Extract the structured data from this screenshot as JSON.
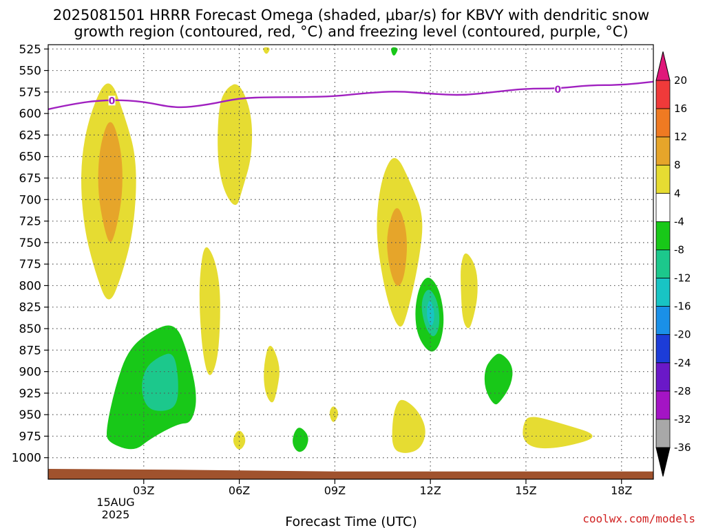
{
  "chart_data": {
    "type": "heatmap",
    "title": {
      "line1": "2025081501 HRRR Forecast Omega (shaded, μbar/s) for KBVY with dendritic snow",
      "line2": "growth region (contoured, red, °C) and freezing level (contoured, purple, °C)"
    },
    "xlabel": "Forecast Time (UTC)",
    "ylabel": "",
    "x_ticks": [
      "03Z",
      "06Z",
      "09Z",
      "12Z",
      "15Z",
      "18Z"
    ],
    "x_tick_sublabels": [
      "15AUG",
      "2025"
    ],
    "x_range_hours_utc": [
      0,
      19
    ],
    "y_ticks_hpa": [
      525,
      550,
      575,
      600,
      625,
      650,
      675,
      700,
      725,
      750,
      775,
      800,
      825,
      850,
      875,
      900,
      925,
      950,
      975,
      1000
    ],
    "y_range_hpa": [
      520,
      1025
    ],
    "grid": true,
    "colorbar": {
      "labels": [
        "20",
        "16",
        "12",
        "8",
        "4",
        "-4",
        "-8",
        "-12",
        "-16",
        "-20",
        "-24",
        "-28",
        "-32",
        "-36"
      ],
      "colors": {
        "above_20": "#e0187a",
        "16_20": "#f03a3a",
        "12_16": "#ef7a22",
        "8_12": "#e6a52a",
        "4_8": "#e6dc32",
        "m4_4": "#ffffff",
        "m8_m4": "#18c818",
        "m12_m8": "#1cc88c",
        "m16_m12": "#18c4c4",
        "m20_m16": "#1a90e8",
        "m24_m20": "#1c3cd8",
        "m28_m24": "#6a18c8",
        "m32_m28": "#a414c4",
        "m36_m32": "#a8a8a8",
        "below_m36": "#000000"
      }
    },
    "freezing_level": {
      "label": "0",
      "color": "#a020c0",
      "points": [
        {
          "x": 0,
          "y": 595
        },
        {
          "x": 1,
          "y": 587
        },
        {
          "x": 2,
          "y": 584
        },
        {
          "x": 3,
          "y": 586
        },
        {
          "x": 4,
          "y": 594
        },
        {
          "x": 5,
          "y": 590
        },
        {
          "x": 6,
          "y": 582
        },
        {
          "x": 7,
          "y": 581
        },
        {
          "x": 8,
          "y": 581
        },
        {
          "x": 9,
          "y": 580
        },
        {
          "x": 10,
          "y": 576
        },
        {
          "x": 11,
          "y": 574
        },
        {
          "x": 12,
          "y": 577
        },
        {
          "x": 13,
          "y": 579
        },
        {
          "x": 14,
          "y": 575
        },
        {
          "x": 15,
          "y": 571
        },
        {
          "x": 16,
          "y": 571
        },
        {
          "x": 17,
          "y": 567
        },
        {
          "x": 18,
          "y": 567
        },
        {
          "x": 19,
          "y": 563
        }
      ],
      "label_points": [
        {
          "x": 2,
          "y": 585
        },
        {
          "x": 16,
          "y": 572
        }
      ]
    },
    "terrain_color": "#a0522d",
    "terrain_top_hpa": [
      {
        "x": 0,
        "y": 1013
      },
      {
        "x": 4,
        "y": 1014
      },
      {
        "x": 9,
        "y": 1016
      },
      {
        "x": 12,
        "y": 1016
      },
      {
        "x": 19,
        "y": 1016
      }
    ],
    "omega_regions": [
      {
        "range": "4_8",
        "points": [
          [
            1.9,
            553
          ],
          [
            2.4,
            602
          ],
          [
            2.8,
            655
          ],
          [
            2.7,
            733
          ],
          [
            2.3,
            790
          ],
          [
            1.9,
            825
          ],
          [
            1.5,
            788
          ],
          [
            1.1,
            730
          ],
          [
            1.0,
            660
          ],
          [
            1.3,
            600
          ]
        ]
      },
      {
        "range": "8_12",
        "points": [
          [
            1.95,
            600
          ],
          [
            2.3,
            640
          ],
          [
            2.35,
            690
          ],
          [
            2.15,
            733
          ],
          [
            1.95,
            755
          ],
          [
            1.75,
            733
          ],
          [
            1.55,
            690
          ],
          [
            1.6,
            640
          ]
        ]
      },
      {
        "range": "4_8",
        "points": [
          [
            6.0,
            563
          ],
          [
            6.4,
            600
          ],
          [
            6.4,
            650
          ],
          [
            6.1,
            688
          ],
          [
            5.9,
            712
          ],
          [
            5.5,
            690
          ],
          [
            5.3,
            650
          ],
          [
            5.35,
            590
          ],
          [
            5.6,
            570
          ]
        ]
      },
      {
        "range": "4_8",
        "points": [
          [
            6.7,
            523
          ],
          [
            7.0,
            523
          ],
          [
            6.85,
            533
          ]
        ]
      },
      {
        "range": "4_8",
        "points": [
          [
            4.9,
            750
          ],
          [
            5.2,
            765
          ],
          [
            5.4,
            800
          ],
          [
            5.4,
            850
          ],
          [
            5.3,
            890
          ],
          [
            5.05,
            910
          ],
          [
            4.85,
            880
          ],
          [
            4.75,
            830
          ],
          [
            4.75,
            790
          ]
        ]
      },
      {
        "range": "4_8",
        "points": [
          [
            6.95,
            862
          ],
          [
            7.3,
            893
          ],
          [
            7.2,
            920
          ],
          [
            7.05,
            940
          ],
          [
            6.8,
            925
          ],
          [
            6.75,
            895
          ]
        ]
      },
      {
        "range": "4_8",
        "points": [
          [
            6.0,
            965
          ],
          [
            6.25,
            980
          ],
          [
            6.0,
            994
          ],
          [
            5.75,
            980
          ]
        ]
      },
      {
        "range": "4_8",
        "points": [
          [
            8.95,
            938
          ],
          [
            9.15,
            948
          ],
          [
            8.95,
            962
          ],
          [
            8.8,
            948
          ]
        ]
      },
      {
        "range": "4_8",
        "points": [
          [
            10.9,
            644
          ],
          [
            11.4,
            682
          ],
          [
            11.8,
            720
          ],
          [
            11.65,
            770
          ],
          [
            11.3,
            830
          ],
          [
            11.05,
            855
          ],
          [
            10.65,
            820
          ],
          [
            10.35,
            760
          ],
          [
            10.3,
            718
          ],
          [
            10.5,
            670
          ]
        ]
      },
      {
        "range": "8_12",
        "points": [
          [
            10.95,
            700
          ],
          [
            11.3,
            740
          ],
          [
            11.2,
            790
          ],
          [
            10.95,
            805
          ],
          [
            10.7,
            780
          ],
          [
            10.6,
            740
          ]
        ]
      },
      {
        "range": "m8_m4",
        "points": [
          [
            10.8,
            523
          ],
          [
            10.9,
            523
          ],
          [
            11.0,
            525
          ],
          [
            10.85,
            535
          ],
          [
            10.75,
            526
          ]
        ]
      },
      {
        "range": "m8_m4",
        "points": [
          [
            11.95,
            787
          ],
          [
            12.3,
            805
          ],
          [
            12.45,
            840
          ],
          [
            12.3,
            870
          ],
          [
            12.0,
            880
          ],
          [
            11.6,
            860
          ],
          [
            11.5,
            830
          ],
          [
            11.65,
            800
          ]
        ]
      },
      {
        "range": "m12_m8",
        "points": [
          [
            12.0,
            803
          ],
          [
            12.25,
            820
          ],
          [
            12.3,
            848
          ],
          [
            12.1,
            862
          ],
          [
            11.85,
            850
          ],
          [
            11.7,
            825
          ],
          [
            11.8,
            808
          ]
        ]
      },
      {
        "range": "m16_m12",
        "points": [
          [
            12.0,
            815
          ],
          [
            12.15,
            833
          ],
          [
            12.05,
            850
          ],
          [
            11.88,
            838
          ],
          [
            11.9,
            822
          ]
        ]
      },
      {
        "range": "4_8",
        "points": [
          [
            13.1,
            758
          ],
          [
            13.45,
            778
          ],
          [
            13.5,
            810
          ],
          [
            13.35,
            838
          ],
          [
            13.2,
            853
          ],
          [
            13.0,
            840
          ],
          [
            12.95,
            800
          ],
          [
            12.95,
            775
          ]
        ]
      },
      {
        "range": "m8_m4",
        "points": [
          [
            14.2,
            877
          ],
          [
            14.6,
            893
          ],
          [
            14.55,
            915
          ],
          [
            14.2,
            935
          ],
          [
            14.0,
            940
          ],
          [
            13.7,
            920
          ],
          [
            13.7,
            897
          ],
          [
            13.95,
            883
          ]
        ]
      },
      {
        "range": "4_8",
        "points": [
          [
            11.1,
            930
          ],
          [
            11.6,
            944
          ],
          [
            11.9,
            968
          ],
          [
            11.7,
            990
          ],
          [
            11.2,
            996
          ],
          [
            10.8,
            990
          ],
          [
            10.8,
            960
          ],
          [
            10.9,
            940
          ]
        ]
      },
      {
        "range": "4_8",
        "points": [
          [
            15.1,
            950
          ],
          [
            16.1,
            960
          ],
          [
            17.4,
            975
          ],
          [
            16.2,
            988
          ],
          [
            15.3,
            990
          ],
          [
            14.9,
            980
          ],
          [
            14.9,
            962
          ]
        ]
      },
      {
        "range": "m8_m4",
        "points": [
          [
            4.0,
            842
          ],
          [
            4.4,
            880
          ],
          [
            4.7,
            930
          ],
          [
            4.5,
            960
          ],
          [
            4.1,
            960
          ],
          [
            3.2,
            978
          ],
          [
            2.7,
            993
          ],
          [
            1.9,
            983
          ],
          [
            1.8,
            970
          ],
          [
            2.1,
            918
          ],
          [
            2.5,
            875
          ],
          [
            3.2,
            853
          ]
        ]
      },
      {
        "range": "m12_m8",
        "points": [
          [
            3.95,
            877
          ],
          [
            4.1,
            910
          ],
          [
            4.05,
            940
          ],
          [
            3.6,
            947
          ],
          [
            3.1,
            943
          ],
          [
            2.9,
            920
          ],
          [
            3.05,
            895
          ],
          [
            3.5,
            882
          ]
        ]
      },
      {
        "range": "m8_m4",
        "points": [
          [
            7.9,
            963
          ],
          [
            8.2,
            975
          ],
          [
            8.1,
            990
          ],
          [
            7.85,
            995
          ],
          [
            7.65,
            984
          ],
          [
            7.72,
            970
          ]
        ]
      }
    ]
  },
  "credit": "coolwx.com/models"
}
